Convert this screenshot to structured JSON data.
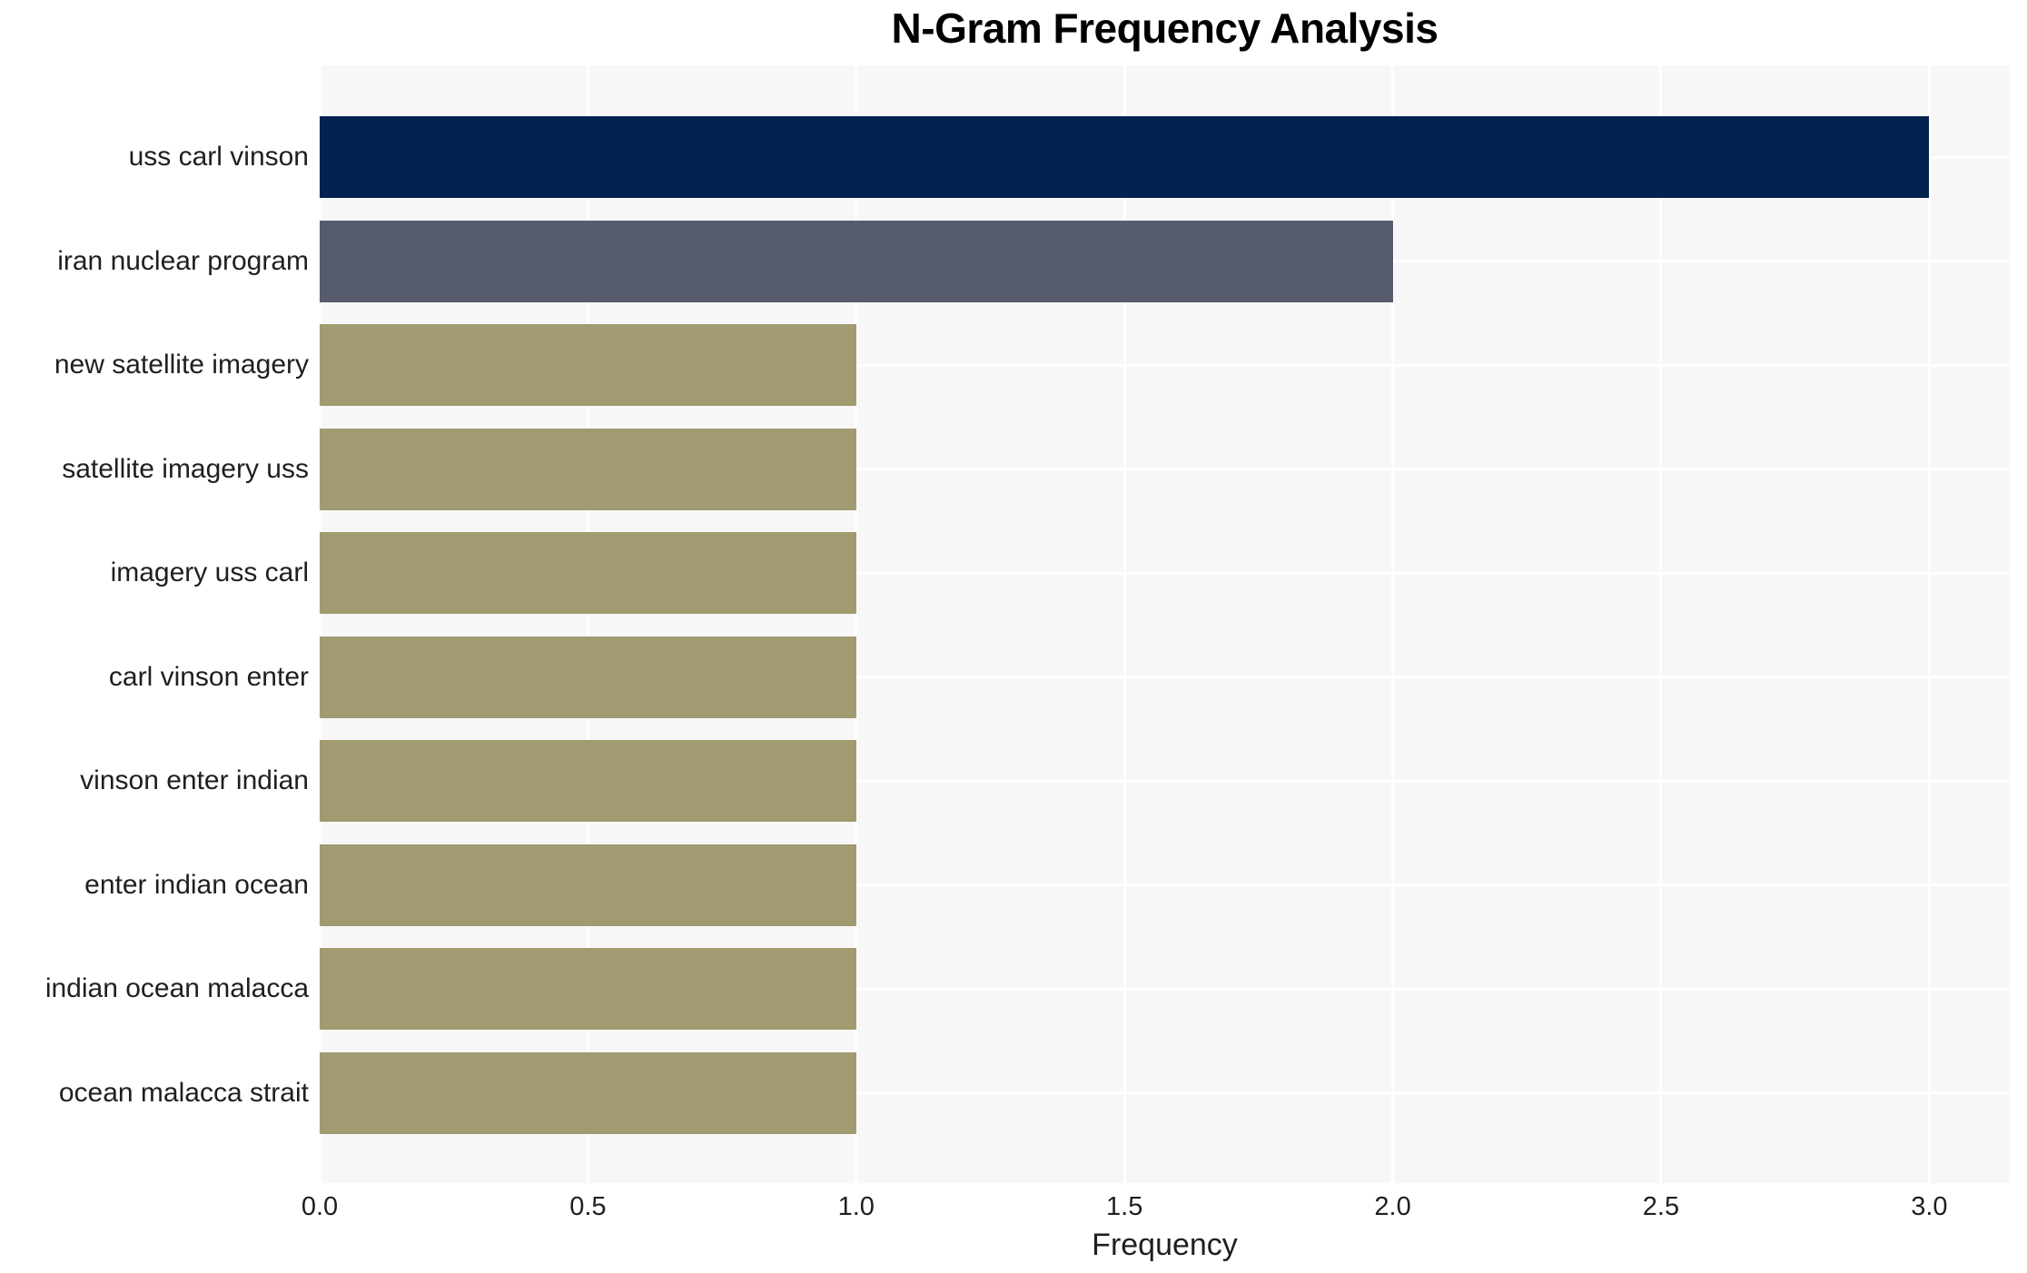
{
  "chart_data": {
    "type": "bar",
    "orientation": "horizontal",
    "title": "N-Gram Frequency Analysis",
    "xlabel": "Frequency",
    "ylabel": "",
    "categories": [
      "uss carl vinson",
      "iran nuclear program",
      "new satellite imagery",
      "satellite imagery uss",
      "imagery uss carl",
      "carl vinson enter",
      "vinson enter indian",
      "enter indian ocean",
      "indian ocean malacca",
      "ocean malacca strait"
    ],
    "values": [
      3,
      2,
      1,
      1,
      1,
      1,
      1,
      1,
      1,
      1
    ],
    "bar_colors": [
      "#02234f",
      "#565b6e",
      "#a29a70",
      "#a29a70",
      "#a29a70",
      "#a29a70",
      "#a29a70",
      "#a29a70",
      "#a29a70",
      "#a29a70"
    ],
    "xticks": {
      "values": [
        0,
        0.5,
        1,
        1.5,
        2,
        2.5,
        3
      ],
      "labels": [
        "0.0",
        "0.5",
        "1.0",
        "1.5",
        "2.0",
        "2.5",
        "3.0"
      ]
    },
    "xlim": [
      0,
      3.15
    ],
    "grid": true,
    "legend_visible": false,
    "colors": {
      "plot_background": "#f7f7f7",
      "grid_line": "#ffffff",
      "text": "#1f1f1f",
      "title": "#000000",
      "page_background": "#ffffff"
    }
  }
}
